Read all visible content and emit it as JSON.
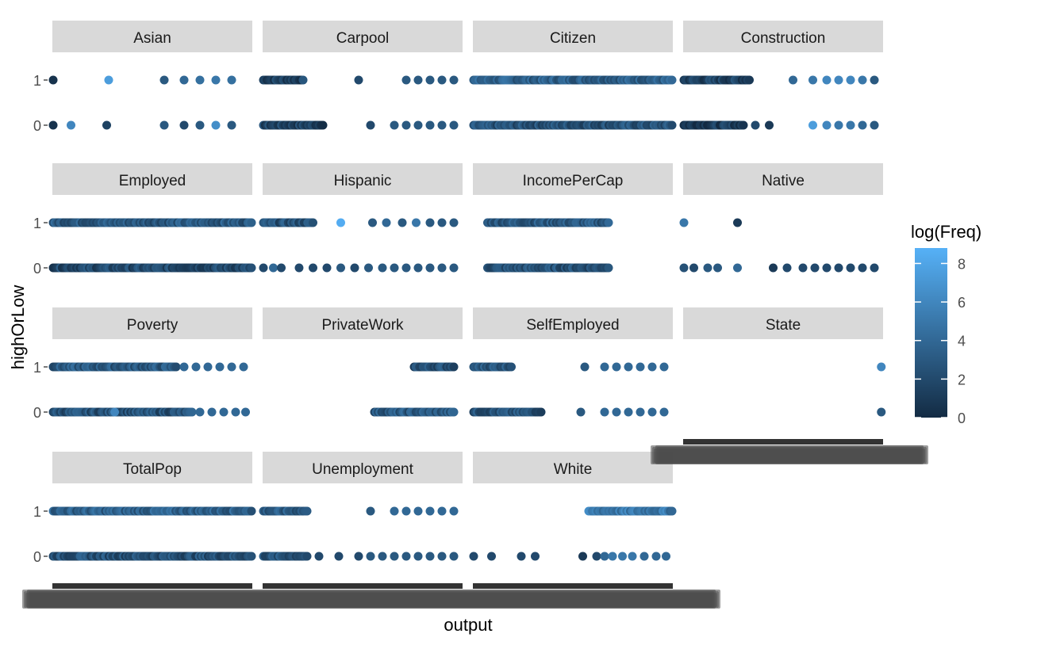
{
  "chart_data": {
    "type": "scatter",
    "xlabel": "output",
    "ylabel": "highOrLow",
    "y_categories": [
      "0",
      "1"
    ],
    "x_axis_tick_labels": "overplotted (illegible)",
    "legend": {
      "title": "log(Freq)",
      "ticks": [
        0,
        2,
        4,
        6,
        8
      ],
      "range": [
        0,
        8.8
      ],
      "colors": [
        "#132b43",
        "#56b1f7"
      ],
      "placement": "right"
    },
    "panel_background": "#ffffff",
    "strip_background": "#d9d9d9",
    "facets": [
      {
        "name": "Asian",
        "y1": [
          [
            0.0,
            0.5
          ],
          [
            0.28,
            7.5
          ],
          [
            0.56,
            3
          ],
          [
            0.66,
            4
          ],
          [
            0.74,
            4.5
          ],
          [
            0.82,
            5
          ],
          [
            0.9,
            4.5
          ]
        ],
        "y0": [
          [
            0.0,
            0.5
          ],
          [
            0.09,
            6
          ],
          [
            0.27,
            1.5
          ],
          [
            0.56,
            3
          ],
          [
            0.66,
            2
          ],
          [
            0.74,
            3
          ],
          [
            0.82,
            6.5
          ],
          [
            0.9,
            3
          ]
        ]
      },
      {
        "name": "Carpool",
        "range1": [
          [
            0.0,
            0.2,
            1.5
          ]
        ],
        "y1": [
          [
            0.48,
            2
          ],
          [
            0.72,
            3
          ],
          [
            0.78,
            3
          ],
          [
            0.84,
            3
          ],
          [
            0.9,
            3
          ],
          [
            0.96,
            3
          ]
        ],
        "range0": [
          [
            0.0,
            0.3,
            1.5
          ]
        ],
        "y0": [
          [
            0.54,
            2
          ],
          [
            0.66,
            3
          ],
          [
            0.72,
            3
          ],
          [
            0.78,
            3
          ],
          [
            0.84,
            3
          ],
          [
            0.9,
            3
          ],
          [
            0.96,
            3
          ]
        ]
      },
      {
        "name": "Citizen",
        "range1": [
          [
            0.0,
            1.0,
            3.5
          ]
        ],
        "range0": [
          [
            0.0,
            1.0,
            2.5
          ]
        ]
      },
      {
        "name": "Construction",
        "range1": [
          [
            0.0,
            0.33,
            1.5
          ]
        ],
        "y1": [
          [
            0.55,
            4
          ],
          [
            0.65,
            5
          ],
          [
            0.72,
            6
          ],
          [
            0.78,
            6
          ],
          [
            0.84,
            6
          ],
          [
            0.9,
            5
          ],
          [
            0.96,
            3
          ]
        ],
        "range0": [
          [
            0.0,
            0.3,
            1
          ]
        ],
        "y0": [
          [
            0.36,
            2
          ],
          [
            0.43,
            1
          ],
          [
            0.65,
            7.5
          ],
          [
            0.72,
            6
          ],
          [
            0.78,
            5
          ],
          [
            0.84,
            5
          ],
          [
            0.9,
            4
          ],
          [
            0.96,
            3
          ]
        ]
      },
      {
        "name": "Employed",
        "range1": [
          [
            0.0,
            1.0,
            3
          ]
        ],
        "range0": [
          [
            0.0,
            1.0,
            2
          ]
        ]
      },
      {
        "name": "Hispanic",
        "range1": [
          [
            0.0,
            0.25,
            2.5
          ]
        ],
        "y1": [
          [
            0.39,
            8.5
          ],
          [
            0.55,
            3
          ],
          [
            0.62,
            4
          ],
          [
            0.7,
            3
          ],
          [
            0.77,
            5
          ],
          [
            0.84,
            3
          ],
          [
            0.9,
            3
          ],
          [
            0.96,
            3
          ]
        ],
        "y0": [
          [
            0.0,
            2
          ],
          [
            0.05,
            4
          ],
          [
            0.09,
            2
          ],
          [
            0.18,
            2
          ],
          [
            0.25,
            2
          ],
          [
            0.32,
            2
          ],
          [
            0.39,
            3
          ],
          [
            0.46,
            2
          ],
          [
            0.53,
            3
          ],
          [
            0.6,
            3
          ],
          [
            0.66,
            3
          ],
          [
            0.72,
            3
          ],
          [
            0.78,
            3
          ],
          [
            0.84,
            3
          ],
          [
            0.9,
            3
          ],
          [
            0.96,
            3
          ]
        ]
      },
      {
        "name": "IncomePerCap",
        "range1": [
          [
            0.07,
            0.68,
            3
          ]
        ],
        "range0": [
          [
            0.07,
            0.68,
            2.5
          ]
        ]
      },
      {
        "name": "Native",
        "y1": [
          [
            0.0,
            5
          ],
          [
            0.27,
            1
          ]
        ],
        "y0": [
          [
            0.0,
            2.5
          ],
          [
            0.05,
            2
          ],
          [
            0.12,
            3
          ],
          [
            0.17,
            3
          ],
          [
            0.27,
            4
          ],
          [
            0.45,
            1
          ],
          [
            0.52,
            2
          ],
          [
            0.6,
            2
          ],
          [
            0.66,
            2
          ],
          [
            0.72,
            2
          ],
          [
            0.78,
            2
          ],
          [
            0.84,
            2
          ],
          [
            0.9,
            2
          ],
          [
            0.96,
            2
          ]
        ]
      },
      {
        "name": "Poverty",
        "range1": [
          [
            0.0,
            0.62,
            3
          ]
        ],
        "y1": [
          [
            0.66,
            4
          ],
          [
            0.72,
            4
          ],
          [
            0.78,
            4
          ],
          [
            0.84,
            4
          ],
          [
            0.9,
            4
          ],
          [
            0.96,
            4
          ]
        ],
        "range0": [
          [
            0.0,
            0.7,
            2.5
          ]
        ],
        "y0": [
          [
            0.31,
            6
          ],
          [
            0.74,
            4
          ],
          [
            0.8,
            4
          ],
          [
            0.86,
            4
          ],
          [
            0.92,
            4
          ],
          [
            0.97,
            4
          ]
        ]
      },
      {
        "name": "PrivateWork",
        "range1": [
          [
            0.76,
            0.96,
            2.5
          ]
        ],
        "range0": [
          [
            0.56,
            0.96,
            3
          ]
        ]
      },
      {
        "name": "SelfEmployed",
        "range1": [
          [
            0.0,
            0.19,
            3
          ]
        ],
        "y1": [
          [
            0.56,
            3
          ],
          [
            0.66,
            4
          ],
          [
            0.72,
            4
          ],
          [
            0.78,
            4
          ],
          [
            0.84,
            4
          ],
          [
            0.9,
            4
          ],
          [
            0.96,
            4
          ]
        ],
        "range0": [
          [
            0.0,
            0.34,
            2.5
          ]
        ],
        "y0": [
          [
            0.54,
            3
          ],
          [
            0.66,
            4
          ],
          [
            0.72,
            4
          ],
          [
            0.78,
            4
          ],
          [
            0.84,
            4
          ],
          [
            0.9,
            4
          ],
          [
            0.96,
            4
          ]
        ]
      },
      {
        "name": "State",
        "y1": [
          [
            0.995,
            6
          ]
        ],
        "y0": [
          [
            0.995,
            3
          ]
        ]
      },
      {
        "name": "TotalPop",
        "range1": [
          [
            0.0,
            1.0,
            3.5
          ]
        ],
        "range0": [
          [
            0.0,
            1.0,
            2.5
          ]
        ]
      },
      {
        "name": "Unemployment",
        "range1": [
          [
            0.0,
            0.22,
            3
          ]
        ],
        "y1": [
          [
            0.54,
            3
          ],
          [
            0.66,
            4
          ],
          [
            0.72,
            4
          ],
          [
            0.78,
            4
          ],
          [
            0.84,
            4
          ],
          [
            0.9,
            4
          ],
          [
            0.96,
            4
          ]
        ],
        "range0": [
          [
            0.0,
            0.22,
            2.5
          ]
        ],
        "y0": [
          [
            0.28,
            2
          ],
          [
            0.38,
            2
          ],
          [
            0.48,
            2
          ],
          [
            0.54,
            3
          ],
          [
            0.6,
            3
          ],
          [
            0.66,
            3
          ],
          [
            0.72,
            3
          ],
          [
            0.78,
            3
          ],
          [
            0.84,
            3
          ],
          [
            0.9,
            3
          ],
          [
            0.96,
            3
          ]
        ]
      },
      {
        "name": "White",
        "range1": [
          [
            0.58,
            1.0,
            5
          ]
        ],
        "range0": [
          [
            0.0,
            0.0,
            1
          ]
        ],
        "y0": [
          [
            0.0,
            2
          ],
          [
            0.09,
            2
          ],
          [
            0.24,
            2
          ],
          [
            0.31,
            2
          ],
          [
            0.55,
            1
          ],
          [
            0.62,
            2
          ],
          [
            0.66,
            4
          ],
          [
            0.7,
            5
          ],
          [
            0.75,
            5
          ],
          [
            0.8,
            5
          ],
          [
            0.86,
            4
          ],
          [
            0.92,
            4
          ],
          [
            0.97,
            4
          ]
        ]
      }
    ]
  }
}
